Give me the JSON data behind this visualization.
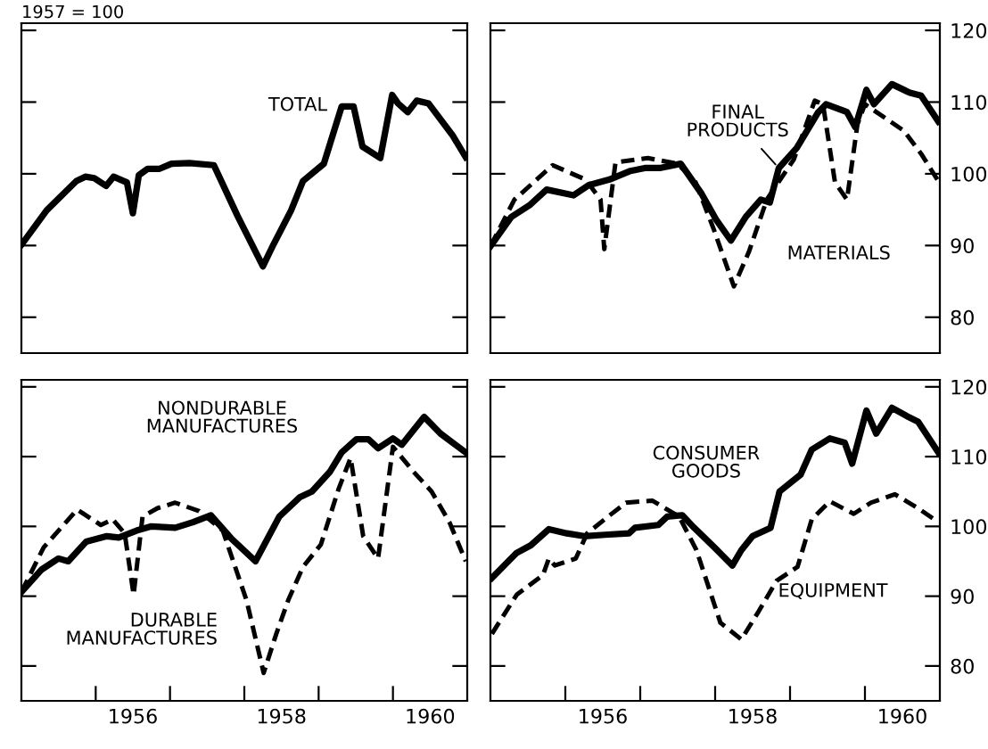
{
  "chart_data": [
    {
      "type": "line",
      "subtitle": "1957 = 100",
      "xlim": [
        1955,
        1961
      ],
      "ylim": [
        75,
        121
      ],
      "yticks": [
        {
          "value": 80,
          "label": null
        },
        {
          "value": 90,
          "label": null
        },
        {
          "value": 100,
          "label": null
        },
        {
          "value": 110,
          "label": null
        },
        {
          "value": 120,
          "label": null
        }
      ],
      "tick_labels": false,
      "grid": false,
      "legend": false,
      "marker": "none",
      "series": [
        {
          "name": "TOTAL",
          "color": "#000000",
          "line_style": "solid",
          "x": [
            1955.0,
            1955.34,
            1955.74,
            1955.86,
            1955.98,
            1956.14,
            1956.24,
            1956.42,
            1956.5,
            1956.58,
            1956.7,
            1956.86,
            1957.02,
            1957.26,
            1957.59,
            1957.91,
            1958.25,
            1958.39,
            1958.63,
            1958.79,
            1959.07,
            1959.31,
            1959.47,
            1959.59,
            1959.83,
            1959.99,
            1960.07,
            1960.2,
            1960.32,
            1960.48,
            1960.8,
            1960.98
          ],
          "values": [
            90.1,
            94.9,
            99.0,
            99.6,
            99.4,
            98.3,
            99.6,
            98.8,
            94.5,
            99.8,
            100.7,
            100.7,
            101.4,
            101.5,
            101.2,
            94.1,
            87.1,
            90.1,
            94.9,
            99.0,
            101.4,
            109.4,
            109.4,
            103.8,
            102.2,
            111.0,
            109.8,
            108.6,
            110.2,
            109.8,
            105.4,
            102.3
          ]
        }
      ]
    },
    {
      "type": "line",
      "xlim": [
        1955,
        1961
      ],
      "ylim": [
        75,
        121
      ],
      "yticks": [
        80,
        90,
        100,
        110,
        120
      ],
      "tick_labels": "y",
      "grid": false,
      "legend": false,
      "marker": "none",
      "series": [
        {
          "name": "FINAL\nPRODUCTS",
          "color": "#000000",
          "line_style": "solid",
          "x": [
            1955.0,
            1955.28,
            1955.52,
            1955.75,
            1956.11,
            1956.31,
            1956.59,
            1956.87,
            1957.06,
            1957.26,
            1957.54,
            1957.82,
            1958.02,
            1958.21,
            1958.41,
            1958.61,
            1958.73,
            1958.85,
            1959.09,
            1959.37,
            1959.48,
            1959.76,
            1959.87,
            1960.02,
            1960.12,
            1960.36,
            1960.6,
            1960.75,
            1960.98
          ],
          "values": [
            89.9,
            94.0,
            95.6,
            97.8,
            97.0,
            98.4,
            99.2,
            100.4,
            100.8,
            100.8,
            101.4,
            97.2,
            93.5,
            90.7,
            94.0,
            96.4,
            96.0,
            100.8,
            103.6,
            108.5,
            109.7,
            108.6,
            106.5,
            111.7,
            109.7,
            112.5,
            111.3,
            110.9,
            107.3
          ]
        },
        {
          "name": "MATERIALS",
          "color": "#000000",
          "line_style": "dashed",
          "x": [
            1955.0,
            1955.32,
            1955.83,
            1956.27,
            1956.47,
            1956.52,
            1956.67,
            1957.1,
            1957.5,
            1957.74,
            1957.98,
            1958.25,
            1958.45,
            1958.69,
            1959.05,
            1959.33,
            1959.44,
            1959.6,
            1959.76,
            1959.9,
            1960.0,
            1960.52,
            1960.75,
            1960.99
          ],
          "values": [
            89.9,
            96.4,
            101.2,
            99.2,
            96.4,
            89.5,
            101.6,
            102.2,
            101.4,
            98.8,
            92.3,
            84.3,
            89.1,
            96.4,
            102.0,
            110.2,
            109.7,
            98.8,
            96.4,
            106.9,
            109.7,
            106.0,
            102.8,
            98.8
          ]
        }
      ]
    },
    {
      "type": "line",
      "xlim": [
        1955,
        1961
      ],
      "ylim": [
        75,
        121
      ],
      "xticks": [
        {
          "value": 1956,
          "label": null
        },
        {
          "value": 1956.5,
          "label": "1956"
        },
        {
          "value": 1957,
          "label": null
        },
        {
          "value": 1958,
          "label": null
        },
        {
          "value": 1958.5,
          "label": "1958"
        },
        {
          "value": 1959,
          "label": null
        },
        {
          "value": 1960,
          "label": null
        },
        {
          "value": 1960.5,
          "label": "1960"
        }
      ],
      "yticks": [
        {
          "value": 80,
          "label": null
        },
        {
          "value": 90,
          "label": null
        },
        {
          "value": 100,
          "label": null
        },
        {
          "value": 110,
          "label": null
        },
        {
          "value": 120,
          "label": null
        }
      ],
      "tick_labels": "x",
      "grid": false,
      "legend": false,
      "marker": "none",
      "series": [
        {
          "name": "NONDURABLE\nMANUFACTURES",
          "color": "#000000",
          "line_style": "solid",
          "x": [
            1955.0,
            1955.27,
            1955.5,
            1955.63,
            1955.87,
            1956.15,
            1956.31,
            1956.55,
            1956.75,
            1957.07,
            1957.31,
            1957.55,
            1957.83,
            1958.15,
            1958.47,
            1958.75,
            1958.91,
            1959.15,
            1959.31,
            1959.51,
            1959.67,
            1959.8,
            1960.0,
            1960.12,
            1960.42,
            1960.64,
            1960.98
          ],
          "values": [
            90.6,
            93.8,
            95.4,
            95.0,
            97.8,
            98.6,
            98.4,
            99.4,
            100.0,
            99.8,
            100.6,
            101.6,
            98.2,
            95.0,
            101.4,
            104.2,
            105.0,
            107.8,
            110.6,
            112.5,
            112.5,
            111.2,
            112.6,
            111.7,
            115.7,
            113.3,
            110.6
          ]
        },
        {
          "name": "DURABLE\nMANUFACTURES",
          "color": "#000000",
          "line_style": "dashed",
          "x": [
            1955.0,
            1955.3,
            1955.75,
            1956.07,
            1956.23,
            1956.39,
            1956.51,
            1956.63,
            1956.83,
            1957.07,
            1957.39,
            1957.71,
            1958.03,
            1958.26,
            1958.43,
            1958.59,
            1958.79,
            1959.03,
            1959.27,
            1959.43,
            1959.6,
            1959.8,
            1960.0,
            1960.28,
            1960.52,
            1960.76,
            1960.98
          ],
          "values": [
            90.6,
            97.0,
            102.4,
            100.2,
            101.0,
            99.0,
            90.2,
            101.4,
            102.6,
            103.4,
            102.2,
            99.4,
            89.4,
            79.0,
            84.6,
            89.4,
            94.2,
            97.4,
            105.4,
            109.8,
            98.6,
            95.4,
            111.4,
            107.8,
            105.0,
            100.6,
            95.0
          ]
        }
      ]
    },
    {
      "type": "line",
      "xlim": [
        1955,
        1961
      ],
      "ylim": [
        75,
        121
      ],
      "xticks": [
        {
          "value": 1956,
          "label": null
        },
        {
          "value": 1956.5,
          "label": "1956"
        },
        {
          "value": 1957,
          "label": null
        },
        {
          "value": 1958,
          "label": null
        },
        {
          "value": 1958.5,
          "label": "1958"
        },
        {
          "value": 1959,
          "label": null
        },
        {
          "value": 1960,
          "label": null
        },
        {
          "value": 1960.5,
          "label": "1960"
        }
      ],
      "yticks": [
        80,
        90,
        100,
        110,
        120
      ],
      "grid": false,
      "legend": false,
      "marker": "none",
      "series": [
        {
          "name": "CONSUMER\nGOODS",
          "color": "#000000",
          "line_style": "solid",
          "x": [
            1955.02,
            1955.35,
            1955.54,
            1955.78,
            1956.02,
            1956.25,
            1956.53,
            1956.85,
            1956.93,
            1957.24,
            1957.36,
            1957.56,
            1957.72,
            1957.99,
            1958.23,
            1958.35,
            1958.5,
            1958.74,
            1958.86,
            1959.14,
            1959.29,
            1959.53,
            1959.73,
            1959.83,
            1960.02,
            1960.15,
            1960.36,
            1960.56,
            1960.71,
            1960.98
          ],
          "values": [
            92.6,
            96.2,
            97.3,
            99.6,
            99.0,
            98.6,
            98.8,
            99.0,
            99.8,
            100.2,
            101.4,
            101.6,
            99.8,
            97.0,
            94.4,
            96.6,
            98.6,
            99.8,
            105.0,
            107.4,
            111.0,
            112.6,
            112.0,
            109.0,
            116.6,
            113.3,
            117.0,
            115.8,
            115.0,
            110.6
          ]
        },
        {
          "name": "EQUIPMENT",
          "color": "#000000",
          "line_style": "dashed",
          "x": [
            1955.02,
            1955.35,
            1955.7,
            1955.78,
            1955.86,
            1956.14,
            1956.29,
            1956.57,
            1956.81,
            1957.16,
            1957.52,
            1957.75,
            1958.07,
            1958.35,
            1958.58,
            1958.82,
            1959.1,
            1959.29,
            1959.53,
            1959.85,
            1960.08,
            1960.4,
            1960.71,
            1960.98
          ],
          "values": [
            84.6,
            90.2,
            93.0,
            95.4,
            94.4,
            95.4,
            99.0,
            101.4,
            103.4,
            103.7,
            101.4,
            96.6,
            86.2,
            83.8,
            87.8,
            92.2,
            94.2,
            101.0,
            103.6,
            101.8,
            103.4,
            104.6,
            102.6,
            100.6
          ]
        }
      ]
    }
  ]
}
